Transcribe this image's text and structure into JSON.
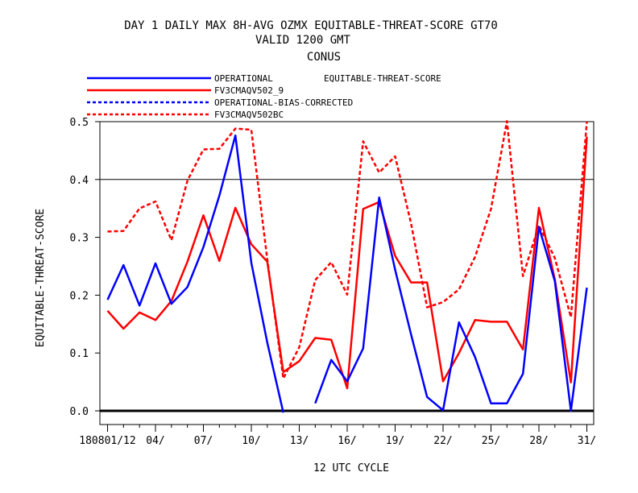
{
  "chart_data": {
    "type": "line",
    "title_lines": [
      "DAY 1 DAILY MAX   8H-AVG OZMX EQUITABLE-THREAT-SCORE GT70",
      "VALID 1200 GMT",
      "CONUS"
    ],
    "legend_title": "EQUITABLE-THREAT-SCORE",
    "xlabel": "12 UTC CYCLE",
    "ylabel": "EQUITABLE-THREAT-SCORE",
    "ylim": [
      0,
      0.5
    ],
    "xlim": [
      0.5,
      31.5
    ],
    "yticks": [
      0,
      0.1,
      0.2,
      0.3,
      0.4,
      0.5
    ],
    "ytick_labels": [
      "0.0",
      "0.1",
      "0.2",
      "0.3",
      "0.4",
      "0.5"
    ],
    "xticks": [
      1,
      4,
      7,
      10,
      13,
      16,
      19,
      22,
      25,
      28,
      31
    ],
    "xtick_labels": [
      "180801/12",
      "04/",
      "07/",
      "10/",
      "13/",
      "16/",
      "19/",
      "22/",
      "25/",
      "28/",
      "31/"
    ],
    "hline": 0.4,
    "colors": {
      "blue": "#0000ff",
      "red": "#ff0000"
    },
    "series": [
      {
        "name": "OPERATIONAL",
        "color": "#0000ff",
        "dash": "solid",
        "x": [
          1,
          2,
          3,
          4,
          5,
          6,
          7,
          8,
          9,
          10,
          11,
          12,
          13,
          14,
          15,
          16,
          17,
          18,
          19,
          20,
          21,
          22,
          23,
          24,
          25,
          26,
          27,
          28,
          29,
          30,
          31
        ],
        "values": [
          0.192,
          0.252,
          0.182,
          0.255,
          0.185,
          0.214,
          0.283,
          0.372,
          0.476,
          0.256,
          0.118,
          -0.003,
          null,
          0.013,
          0.088,
          0.051,
          0.108,
          0.369,
          0.244,
          0.132,
          0.024,
          0.001,
          0.153,
          0.093,
          0.013,
          0.013,
          0.064,
          0.318,
          0.224,
          0.0,
          0.213
        ]
      },
      {
        "name": "FV3CMAQV502_9",
        "color": "#ff0000",
        "dash": "solid",
        "x": [
          1,
          2,
          3,
          4,
          5,
          6,
          7,
          8,
          9,
          10,
          11,
          12,
          13,
          14,
          15,
          16,
          17,
          18,
          19,
          20,
          21,
          22,
          23,
          24,
          25,
          26,
          27,
          28,
          29,
          30,
          31
        ],
        "values": [
          0.173,
          0.142,
          0.17,
          0.157,
          0.19,
          0.258,
          0.338,
          0.259,
          0.351,
          0.288,
          0.258,
          0.067,
          0.086,
          0.126,
          0.123,
          0.039,
          0.349,
          0.361,
          0.268,
          0.222,
          0.222,
          0.051,
          0.1,
          0.157,
          0.154,
          0.154,
          0.106,
          0.351,
          0.227,
          0.049,
          0.474
        ]
      },
      {
        "name": "OPERATIONAL-BIAS-CORRECTED",
        "color": "#0000ff",
        "dash": "dashed",
        "x": [],
        "values": []
      },
      {
        "name": "FV3CMAQV502BC",
        "color": "#ff0000",
        "dash": "dashed",
        "x": [
          1,
          2,
          3,
          4,
          5,
          6,
          7,
          8,
          9,
          10,
          11,
          12,
          13,
          14,
          15,
          16,
          17,
          18,
          19,
          20,
          21,
          22,
          23,
          24,
          25,
          26,
          27,
          28,
          29,
          30,
          31
        ],
        "values": [
          0.31,
          0.311,
          0.35,
          0.362,
          0.295,
          0.398,
          0.452,
          0.453,
          0.488,
          0.486,
          0.262,
          0.056,
          0.11,
          0.226,
          0.257,
          0.201,
          0.466,
          0.412,
          0.44,
          0.324,
          0.179,
          0.188,
          0.21,
          0.266,
          0.349,
          0.501,
          0.233,
          0.321,
          0.264,
          0.162,
          0.5
        ]
      }
    ]
  }
}
